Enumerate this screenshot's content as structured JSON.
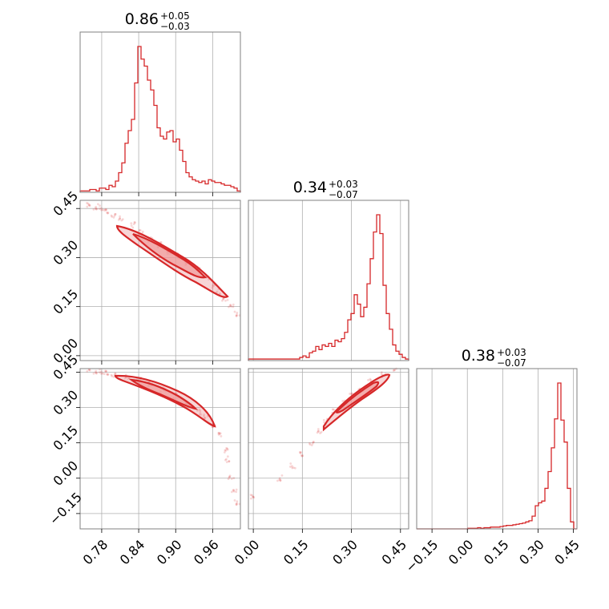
{
  "chart_data": {
    "type": "corner",
    "color": "#d62728",
    "params": [
      {
        "median": 0.86,
        "plus": 0.05,
        "minus": 0.03,
        "range": [
          0.745,
          1.005
        ],
        "ticks": [
          "0.78",
          "0.84",
          "0.90",
          "0.96"
        ]
      },
      {
        "median": 0.34,
        "plus": 0.03,
        "minus": 0.07,
        "range": [
          -0.015,
          0.475
        ],
        "ticks": [
          "0.00",
          "0.15",
          "0.30",
          "0.45"
        ]
      },
      {
        "median": 0.38,
        "plus": 0.03,
        "minus": 0.07,
        "range": [
          -0.215,
          0.465
        ],
        "ticks": [
          "−0.15",
          "0.00",
          "0.15",
          "0.30",
          "0.45"
        ]
      }
    ],
    "titles": [
      {
        "main": "0.86",
        "sup": "+0.05",
        "sub": "−0.03"
      },
      {
        "main": "0.34",
        "sup": "+0.03",
        "sub": "−0.07"
      },
      {
        "main": "0.38",
        "sup": "+0.03",
        "sub": "−0.07"
      }
    ],
    "histograms": [
      {
        "range": [
          0.745,
          1.005
        ],
        "counts": [
          1,
          1,
          1,
          2,
          2,
          1,
          3,
          3,
          2,
          5,
          4,
          8,
          14,
          21,
          35,
          44,
          52,
          78,
          104,
          95,
          90,
          80,
          73,
          62,
          46,
          40,
          38,
          43,
          44,
          36,
          38,
          30,
          22,
          14,
          11,
          9,
          8,
          7,
          8,
          6,
          9,
          8,
          7,
          7,
          6,
          5,
          5,
          4,
          3,
          1
        ]
      },
      {
        "range": [
          -0.015,
          0.475
        ],
        "counts": [
          1,
          1,
          1,
          1,
          1,
          1,
          1,
          1,
          1,
          1,
          1,
          1,
          1,
          1,
          1,
          1,
          2,
          3,
          2,
          5,
          6,
          9,
          7,
          10,
          9,
          11,
          9,
          13,
          12,
          14,
          18,
          26,
          30,
          42,
          36,
          28,
          34,
          49,
          65,
          82,
          93,
          81,
          48,
          30,
          20,
          10,
          6,
          4,
          2,
          1
        ]
      },
      {
        "range": [
          -0.215,
          0.465
        ],
        "counts": [
          0,
          0,
          0,
          0,
          0,
          0,
          0,
          0,
          0,
          0,
          0,
          0,
          0,
          0,
          0,
          0,
          1,
          1,
          1,
          2,
          1,
          2,
          2,
          3,
          3,
          3,
          4,
          5,
          6,
          6,
          7,
          8,
          9,
          10,
          12,
          14,
          22,
          40,
          45,
          48,
          70,
          99,
          140,
          190,
          252,
          188,
          150,
          70,
          12,
          0
        ]
      }
    ],
    "scatter_x_p2_vs_p1": {
      "x": [
        0.76,
        0.77,
        0.78,
        0.79,
        0.8,
        0.81,
        0.83,
        0.845,
        0.86,
        0.875,
        0.89,
        0.905,
        0.92,
        0.935,
        0.95,
        0.96,
        0.97,
        0.98,
        0.99,
        1.0
      ],
      "y": [
        0.46,
        0.455,
        0.45,
        0.44,
        0.43,
        0.42,
        0.4,
        0.375,
        0.355,
        0.34,
        0.32,
        0.305,
        0.285,
        0.265,
        0.235,
        0.215,
        0.195,
        0.17,
        0.155,
        0.13
      ]
    },
    "scatter_x_p3_vs_p1": {
      "x": [
        0.76,
        0.77,
        0.78,
        0.79,
        0.8,
        0.82,
        0.84,
        0.86,
        0.88,
        0.9,
        0.92,
        0.94,
        0.95,
        0.96,
        0.97,
        0.98,
        0.985,
        0.99,
        0.995,
        1.0
      ],
      "y": [
        0.46,
        0.455,
        0.45,
        0.445,
        0.44,
        0.43,
        0.415,
        0.395,
        0.375,
        0.35,
        0.32,
        0.28,
        0.26,
        0.22,
        0.18,
        0.12,
        0.08,
        0.0,
        -0.05,
        -0.1
      ]
    },
    "scatter_x_p3_vs_p2": {
      "x": [
        0.0,
        0.08,
        0.12,
        0.15,
        0.18,
        0.2,
        0.22,
        0.25,
        0.28,
        0.3,
        0.33,
        0.36,
        0.4,
        0.43,
        0.45
      ],
      "y": [
        -0.08,
        0.0,
        0.05,
        0.1,
        0.15,
        0.2,
        0.24,
        0.28,
        0.32,
        0.35,
        0.38,
        0.41,
        0.44,
        0.46,
        0.47
      ]
    }
  }
}
